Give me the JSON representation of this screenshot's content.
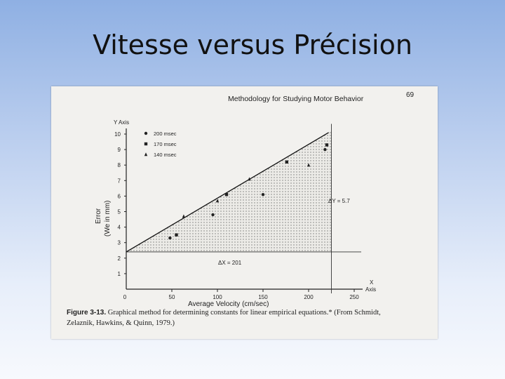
{
  "slide": {
    "title": "Vitesse versus Précision"
  },
  "page": {
    "header": "Methodology for Studying Motor Behavior",
    "page_number": "69",
    "figure_label": "Figure 3-13.",
    "caption_line1": "Graphical method for determining constants for linear empirical equations.* (From Schmidt,",
    "caption_line2": "Zelaznik, Hawkins, & Quinn, 1979.)"
  },
  "chart_data": {
    "type": "scatter",
    "title": "",
    "y_axis_title": "Y Axis",
    "ylabel_line1": "Error",
    "ylabel_line2": "(We in mm)",
    "x_axis_title_line1": "X",
    "x_axis_title_line2": "Axis",
    "xlabel": "Average Velocity (cm/sec)",
    "xlim": [
      0,
      250
    ],
    "ylim": [
      0,
      10
    ],
    "x_ticks": [
      50,
      100,
      150,
      200,
      250
    ],
    "y_ticks": [
      1,
      2,
      3,
      4,
      5,
      6,
      7,
      8,
      9,
      10
    ],
    "origin_label": "0",
    "grid": false,
    "legend_position": "top-left",
    "series": [
      {
        "name": "200 msec",
        "marker": "circle",
        "points": [
          [
            48,
            3.3
          ],
          [
            95,
            4.8
          ],
          [
            150,
            6.1
          ],
          [
            218,
            9.0
          ]
        ]
      },
      {
        "name": "170 msec",
        "marker": "square",
        "points": [
          [
            55,
            3.5
          ],
          [
            110,
            6.1
          ],
          [
            176,
            8.2
          ],
          [
            220,
            9.3
          ]
        ]
      },
      {
        "name": "140 msec",
        "marker": "triangle",
        "points": [
          [
            63,
            4.7
          ],
          [
            100,
            5.7
          ],
          [
            135,
            7.1
          ],
          [
            200,
            8.0
          ]
        ]
      }
    ],
    "fit_line": {
      "x": [
        0,
        222
      ],
      "y": [
        2.4,
        10.1
      ]
    },
    "horizontal_line_y": 2.4,
    "vertical_line_x": 225,
    "annotations": {
      "delta_y": "ΔY = 5.7",
      "delta_x": "ΔX = 201"
    }
  }
}
